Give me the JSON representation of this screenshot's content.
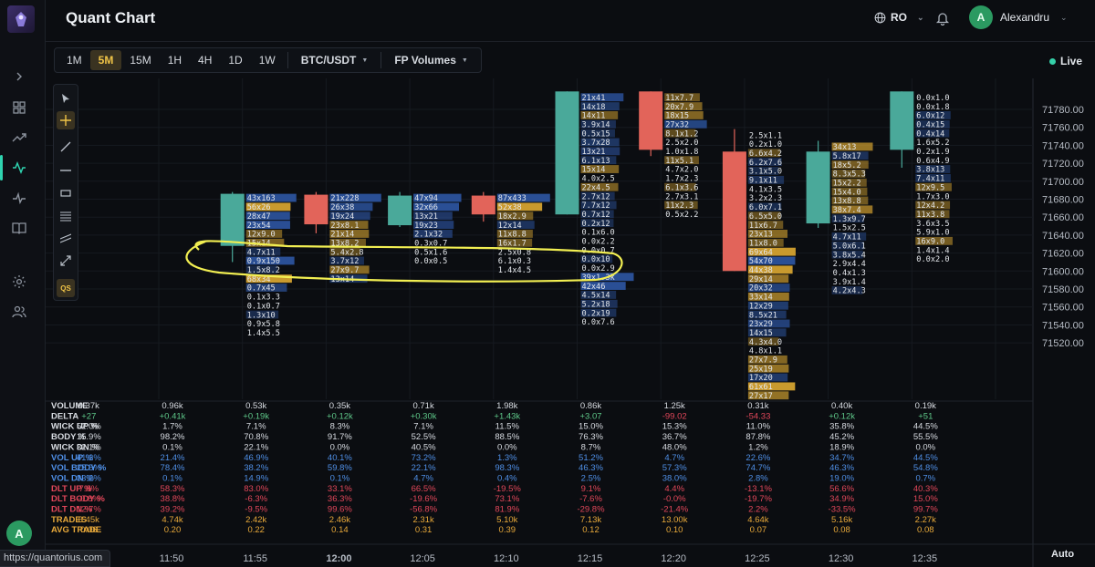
{
  "app": {
    "title": "Quant Chart",
    "language": "RO",
    "user_name": "Alexandru",
    "user_initial": "A"
  },
  "toolbar": {
    "timeframes": [
      "1M",
      "5M",
      "15M",
      "1H",
      "4H",
      "1D",
      "1W"
    ],
    "active_timeframe": "5M",
    "symbol": "BTC/USDT",
    "indicator": "FP Volumes",
    "live_label": "Live"
  },
  "left_rail_icons": [
    "chevron-right-icon",
    "grid-icon",
    "trending-up-icon",
    "activity-icon",
    "pulse-icon",
    "book-icon",
    "settings-icon",
    "users-icon"
  ],
  "drawing_tools": [
    "cursor-icon",
    "crosshair-icon",
    "trend-line-icon",
    "horizontal-line-icon",
    "rectangle-icon",
    "fib-icon",
    "channel-icon",
    "measure-icon",
    "qs-icon"
  ],
  "colors": {
    "up": "#4aa99a",
    "down": "#e2645a",
    "accent": "#f0c447",
    "buy_cell": "#c99a2e",
    "sell_cell": "#2a4f95",
    "highlight": "#f2ef52"
  },
  "chart_data": {
    "type": "footprint-candlestick",
    "y_ticks": [
      71780,
      71760,
      71740,
      71720,
      71700,
      71680,
      71660,
      71640,
      71620,
      71600,
      71580,
      71560,
      71540,
      71520
    ],
    "y_ticks_label": [
      "71780.00",
      "71760.00",
      "71740.00",
      "71720.00",
      "71700.00",
      "71680.00",
      "71660.00",
      "71640.00",
      "71620.00",
      "71600.00",
      "71580.00",
      "71560.00",
      "71540.00",
      "71520.00"
    ],
    "x": [
      "11:45",
      "11:50",
      "11:55",
      "12:00",
      "12:05",
      "12:10",
      "12:15",
      "12:20",
      "12:25",
      "12:30",
      "12:35"
    ],
    "candles": [
      {
        "time": "11:50",
        "open": 71628,
        "close": 71686,
        "high": 71688,
        "low": 71610,
        "fp": [
          "43x163",
          "56x26",
          "28x47",
          "23x54",
          "12x9.0",
          "15x14",
          "4.7x11",
          "0.9x150",
          "1.5x8.2",
          "68x34",
          "0.7x45",
          "0.1x3.3",
          "0.1x0.7",
          "1.3x10",
          "0.9x5.8",
          "1.4x5.5"
        ]
      },
      {
        "time": "11:55",
        "open": 71685,
        "close": 71652,
        "high": 71688,
        "low": 71642,
        "fp": [
          "21x228",
          "26x38",
          "19x24",
          "23x8.1",
          "21x14",
          "13x8.2",
          "5.4x2.8",
          "3.7x12",
          "27x9.7",
          "13x14"
        ]
      },
      {
        "time": "12:00",
        "open": 71651,
        "close": 71684,
        "high": 71688,
        "low": 71649,
        "fp": [
          "47x94",
          "32x66",
          "13x21",
          "19x23",
          "2.1x32",
          "0.3x0.7",
          "0.5x1.6",
          "0.0x0.5"
        ]
      },
      {
        "time": "12:05",
        "open": 71684,
        "close": 71663,
        "high": 71688,
        "low": 71655,
        "fp": [
          "87x433",
          "52x38",
          "18x2.9",
          "12x14",
          "11x8.8",
          "16x1.7",
          "2.5x0.8",
          "6.1x0.3",
          "1.4x4.5"
        ]
      },
      {
        "time": "12:10",
        "open": 71663,
        "close": 71800,
        "high": 71800,
        "low": 71663,
        "fp": [
          "21x41",
          "14x18",
          "14x11",
          "3.9x14",
          "0.5x15",
          "3.7x28",
          "13x21",
          "6.1x13",
          "15x14",
          "4.0x2.5",
          "22x4.5",
          "2.7x12",
          "7.7x12",
          "0.7x12",
          "0.2x12",
          "0.1x6.0",
          "0.0x2.2",
          "0.0x0.7",
          "0.0x10",
          "0.0x2.9",
          "39x1.3k",
          "42x46",
          "4.5x14",
          "5.2x18",
          "0.2x19",
          "0.0x7.6"
        ]
      },
      {
        "time": "12:15",
        "open": 71800,
        "close": 71735,
        "high": 71800,
        "low": 71728,
        "fp": [
          "11x7.7",
          "20x7.9",
          "18x15",
          "27x32",
          "8.1x1.2",
          "2.5x2.0",
          "1.0x1.8",
          "11x5.1",
          "4.7x2.0",
          "1.7x2.3",
          "6.1x3.6",
          "2.7x3.1",
          "11x2.3",
          "0.5x2.2"
        ]
      },
      {
        "time": "12:20",
        "open": 71733,
        "close": 71600,
        "high": 71758,
        "low": 71600,
        "fp": [
          "2.5x1.1",
          "0.2x1.0",
          "6.6x4.2",
          "6.2x7.6",
          "3.1x5.0",
          "9.1x11",
          "4.1x3.5",
          "3.2x2.3",
          "6.0x7.1",
          "6.5x5.0",
          "11x6.7",
          "23x13",
          "11x8.0",
          "69x64",
          "54x70",
          "44x38",
          "29x14",
          "20x32",
          "33x14",
          "12x29",
          "8.5x21",
          "23x29",
          "14x15",
          "4.3x4.0",
          "4.8x1.1",
          "27x7.9",
          "25x19",
          "17x20",
          "61x61",
          "27x17",
          "5.9x4.3"
        ]
      },
      {
        "time": "12:25",
        "open": 71653,
        "close": 71733,
        "high": 71745,
        "low": 71648,
        "fp": [
          "34x13",
          "5.8x17",
          "18x5.2",
          "8.3x5.3",
          "15x2.2",
          "15x4.0",
          "13x8.8",
          "38x7.4",
          "1.3x9.7",
          "1.5x2.5",
          "4.7x11",
          "5.0x6.1",
          "3.8x5.4",
          "2.9x4.4",
          "0.4x1.3",
          "3.9x1.4",
          "4.2x4.3"
        ]
      },
      {
        "time": "12:30",
        "open": 71735,
        "close": 71800,
        "high": 71800,
        "low": 71715,
        "fp": [
          "0.0x1.0",
          "0.0x1.8",
          "6.0x12",
          "0.4x15",
          "0.4x14",
          "1.6x5.2",
          "0.2x1.9",
          "0.6x4.9",
          "3.8x13",
          "7.4x11",
          "12x9.5",
          "1.7x3.0",
          "12x4.2",
          "11x3.8",
          "3.6x3.5",
          "5.9x1.0",
          "16x9.0",
          "1.4x1.4",
          "0.0x2.0"
        ]
      }
    ]
  },
  "stats": {
    "rows": [
      {
        "name": "VOLUME",
        "color": "#d8dce2",
        "values": [
          "0.37k",
          "0.96k",
          "0.53k",
          "0.35k",
          "0.71k",
          "1.98k",
          "0.86k",
          "1.25k",
          "0.31k",
          "0.40k",
          "0.19k"
        ]
      },
      {
        "name": "DELTA",
        "color": "#d8dce2",
        "values": [
          "+27",
          "+0.41k",
          "+0.19k",
          "+0.12k",
          "+0.30k",
          "+1.43k",
          "+3.07",
          "-99.02",
          "-54.33",
          "+0.12k",
          "+51"
        ]
      },
      {
        "name": "WICK UP %",
        "color": "#d8dce2",
        "values": [
          "52.0%",
          "1.7%",
          "7.1%",
          "8.3%",
          "7.1%",
          "11.5%",
          "15.0%",
          "15.3%",
          "11.0%",
          "35.8%",
          "44.5%"
        ]
      },
      {
        "name": "BODY %",
        "color": "#d8dce2",
        "values": [
          "15.9%",
          "98.2%",
          "70.8%",
          "91.7%",
          "52.5%",
          "88.5%",
          "76.3%",
          "36.7%",
          "87.8%",
          "45.2%",
          "55.5%"
        ]
      },
      {
        "name": "WICK DN %",
        "color": "#d8dce2",
        "values": [
          "32.1%",
          "0.1%",
          "22.1%",
          "0.0%",
          "40.5%",
          "0.0%",
          "8.7%",
          "48.0%",
          "1.2%",
          "18.9%",
          "0.0%"
        ]
      },
      {
        "name": "VOL UP %",
        "color": "#4f8fe6",
        "values": [
          "41.2%",
          "21.4%",
          "46.9%",
          "40.1%",
          "73.2%",
          "1.3%",
          "51.2%",
          "4.7%",
          "22.6%",
          "34.7%",
          "44.5%"
        ]
      },
      {
        "name": "VOL BODY %",
        "color": "#4f8fe6",
        "values": [
          "25.5%",
          "78.4%",
          "38.2%",
          "59.8%",
          "22.1%",
          "98.3%",
          "46.3%",
          "57.3%",
          "74.7%",
          "46.3%",
          "54.8%"
        ]
      },
      {
        "name": "VOL DN %",
        "color": "#4f8fe6",
        "values": [
          "33.2%",
          "0.1%",
          "14.9%",
          "0.1%",
          "4.7%",
          "0.4%",
          "2.5%",
          "38.0%",
          "2.8%",
          "19.0%",
          "0.7%"
        ]
      },
      {
        "name": "DLT UP %",
        "color": "#e2475a",
        "values": [
          "7.8%",
          "58.3%",
          "83.0%",
          "33.1%",
          "66.5%",
          "-19.5%",
          "9.1%",
          "4.4%",
          "-13.1%",
          "56.6%",
          "40.3%"
        ]
      },
      {
        "name": "DLT BODY %",
        "color": "#e2475a",
        "values": [
          "-0.8%",
          "38.8%",
          "-6.3%",
          "36.3%",
          "-19.6%",
          "73.1%",
          "-7.6%",
          "-0.0%",
          "-19.7%",
          "34.9%",
          "15.0%"
        ]
      },
      {
        "name": "DLT DN %",
        "color": "#e2475a",
        "values": [
          "12.7%",
          "39.2%",
          "-9.5%",
          "99.6%",
          "-56.8%",
          "81.9%",
          "-29.8%",
          "-21.4%",
          "2.2%",
          "-33.5%",
          "99.7%"
        ]
      },
      {
        "name": "TRADES",
        "color": "#e8a93a",
        "values": [
          "6.45k",
          "4.74k",
          "2.42k",
          "2.46k",
          "2.31k",
          "5.10k",
          "7.13k",
          "13.00k",
          "4.64k",
          "5.16k",
          "2.27k"
        ]
      },
      {
        "name": "AVG TRADE",
        "color": "#e8a93a",
        "values": [
          "0.06",
          "0.20",
          "0.22",
          "0.14",
          "0.31",
          "0.39",
          "0.12",
          "0.10",
          "0.07",
          "0.08",
          "0.08"
        ]
      }
    ]
  },
  "footer": {
    "auto_label": "Auto",
    "status_url": "https://quantorius.com"
  }
}
